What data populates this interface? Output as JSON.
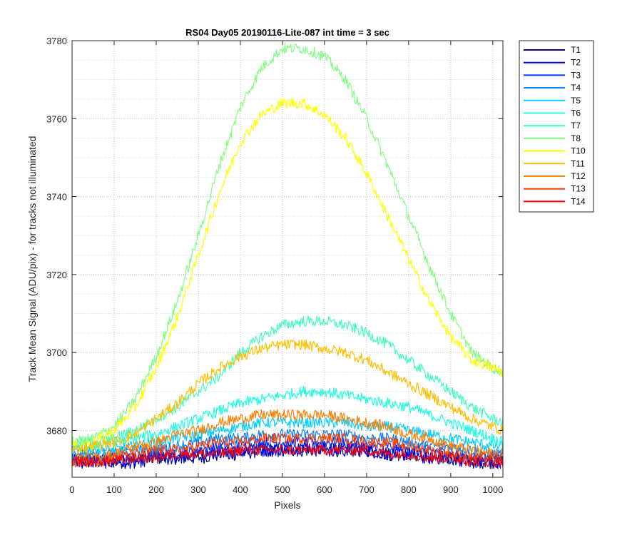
{
  "chart_data": {
    "type": "line",
    "title": "RS04 Day05 20190116-Lite-087 int time = 3 sec",
    "xlabel": "Pixels",
    "ylabel": "Track Mean Signal (ADU/pix) - for tracks not illuminated",
    "xlim": [
      0,
      1024
    ],
    "ylim": [
      3668,
      3780
    ],
    "xticks": [
      0,
      100,
      200,
      300,
      400,
      500,
      600,
      700,
      800,
      900,
      1000
    ],
    "yticks": [
      3680,
      3700,
      3720,
      3740,
      3760,
      3780
    ],
    "grid": true,
    "grid_style": "dotted",
    "legend_position": "outside-top-right",
    "x": [
      0,
      50,
      100,
      150,
      200,
      250,
      300,
      350,
      400,
      450,
      500,
      550,
      600,
      650,
      700,
      750,
      800,
      850,
      900,
      950,
      1000,
      1024
    ],
    "series": [
      {
        "name": "T1",
        "color": "#00008f",
        "values": [
          3672,
          3672,
          3672,
          3672,
          3673,
          3673,
          3673,
          3674,
          3674,
          3675,
          3675,
          3675,
          3675,
          3675,
          3675,
          3674,
          3674,
          3673,
          3673,
          3672,
          3672,
          3672
        ]
      },
      {
        "name": "T2",
        "color": "#0000df",
        "values": [
          3672,
          3672,
          3672,
          3672,
          3673,
          3673,
          3674,
          3674,
          3675,
          3675,
          3675,
          3676,
          3675,
          3675,
          3675,
          3674,
          3674,
          3673,
          3673,
          3672,
          3672,
          3672
        ]
      },
      {
        "name": "T3",
        "color": "#0030ff",
        "values": [
          3673,
          3673,
          3673,
          3673,
          3674,
          3674,
          3675,
          3676,
          3676,
          3677,
          3677,
          3677,
          3677,
          3677,
          3676,
          3676,
          3675,
          3675,
          3674,
          3673,
          3673,
          3673
        ]
      },
      {
        "name": "T4",
        "color": "#0080ff",
        "values": [
          3674,
          3674,
          3674,
          3675,
          3675,
          3676,
          3677,
          3678,
          3678,
          3679,
          3679,
          3679,
          3679,
          3679,
          3678,
          3678,
          3677,
          3676,
          3676,
          3675,
          3674,
          3674
        ]
      },
      {
        "name": "T5",
        "color": "#00cfff",
        "values": [
          3675,
          3675,
          3675,
          3676,
          3677,
          3678,
          3679,
          3680,
          3681,
          3682,
          3682,
          3682,
          3682,
          3682,
          3681,
          3681,
          3680,
          3679,
          3678,
          3677,
          3676,
          3676
        ]
      },
      {
        "name": "T6",
        "color": "#20ffdf",
        "values": [
          3676,
          3676,
          3677,
          3678,
          3679,
          3681,
          3683,
          3685,
          3687,
          3688,
          3689,
          3690,
          3690,
          3689,
          3688,
          3687,
          3686,
          3684,
          3682,
          3680,
          3678,
          3677
        ]
      },
      {
        "name": "T7",
        "color": "#40ffbf",
        "values": [
          3677,
          3677,
          3678,
          3680,
          3683,
          3686,
          3690,
          3694,
          3700,
          3704,
          3707,
          3708,
          3708,
          3707,
          3705,
          3702,
          3698,
          3694,
          3690,
          3686,
          3683,
          3682
        ]
      },
      {
        "name": "T8",
        "color": "#80ff80",
        "values": [
          3677,
          3678,
          3681,
          3688,
          3699,
          3713,
          3730,
          3748,
          3763,
          3773,
          3778,
          3778,
          3776,
          3770,
          3760,
          3748,
          3735,
          3722,
          3710,
          3700,
          3696,
          3695
        ]
      },
      {
        "name": "T10",
        "color": "#ffff00",
        "values": [
          3676,
          3677,
          3680,
          3686,
          3696,
          3709,
          3725,
          3741,
          3754,
          3761,
          3764,
          3764,
          3761,
          3755,
          3746,
          3735,
          3724,
          3713,
          3704,
          3698,
          3696,
          3695
        ]
      },
      {
        "name": "T11",
        "color": "#ffbf00",
        "values": [
          3675,
          3676,
          3677,
          3679,
          3683,
          3687,
          3692,
          3696,
          3699,
          3701,
          3702,
          3702,
          3701,
          3700,
          3698,
          3695,
          3692,
          3689,
          3686,
          3683,
          3681,
          3680
        ]
      },
      {
        "name": "T12",
        "color": "#ff8000",
        "values": [
          3673,
          3673,
          3674,
          3676,
          3677,
          3679,
          3680,
          3682,
          3683,
          3684,
          3684,
          3684,
          3684,
          3683,
          3682,
          3681,
          3679,
          3678,
          3676,
          3675,
          3674,
          3674
        ]
      },
      {
        "name": "T13",
        "color": "#ff4000",
        "values": [
          3672,
          3672,
          3673,
          3674,
          3675,
          3675,
          3676,
          3677,
          3677,
          3678,
          3678,
          3678,
          3678,
          3678,
          3677,
          3677,
          3676,
          3675,
          3674,
          3673,
          3673,
          3673
        ]
      },
      {
        "name": "T14",
        "color": "#ff0000",
        "values": [
          3672,
          3672,
          3672,
          3673,
          3673,
          3674,
          3674,
          3674,
          3675,
          3675,
          3675,
          3675,
          3675,
          3675,
          3675,
          3674,
          3674,
          3673,
          3673,
          3672,
          3672,
          3672
        ]
      }
    ]
  }
}
